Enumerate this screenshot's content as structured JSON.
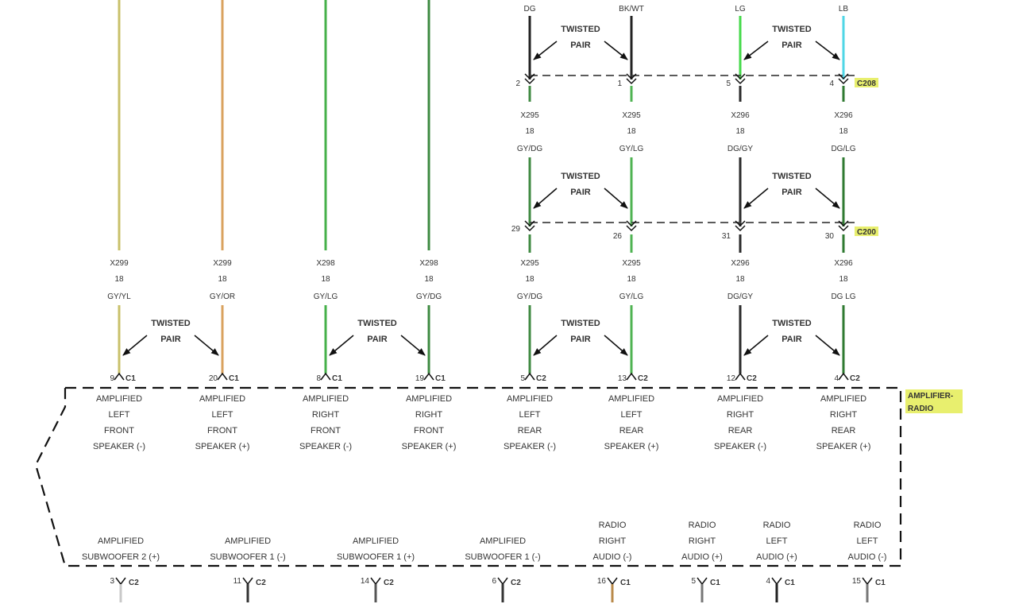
{
  "twisted_pair": [
    "TWISTED",
    "PAIR"
  ],
  "top_wires": [
    {
      "code": "DG",
      "color": "#222222"
    },
    {
      "code": "BK/WT",
      "color": "#222222"
    },
    {
      "code": "LG",
      "color": "#44d94a"
    },
    {
      "code": "LB",
      "color": "#4fd6e6"
    }
  ],
  "connector_c208": {
    "name": "C208",
    "pins": [
      "2",
      "1",
      "5",
      "4"
    ]
  },
  "connector_c200": {
    "name": "C200",
    "pins": [
      "29",
      "26",
      "31",
      "30"
    ]
  },
  "mid_wires": [
    {
      "circuit": "X295",
      "gauge": "18",
      "code": "GY/DG"
    },
    {
      "circuit": "X295",
      "gauge": "18",
      "code": "GY/LG"
    },
    {
      "circuit": "X296",
      "gauge": "18",
      "code": "DG/GY"
    },
    {
      "circuit": "X296",
      "gauge": "18",
      "code": "DG/LG"
    }
  ],
  "speaker_wires": [
    {
      "circuit": "X299",
      "gauge": "18",
      "code": "GY/YL",
      "color": "#c9c06a",
      "pin": "9",
      "conn": "C1",
      "function": [
        "AMPLIFIED",
        "LEFT",
        "FRONT",
        "SPEAKER (-)"
      ]
    },
    {
      "circuit": "X299",
      "gauge": "18",
      "code": "GY/OR",
      "color": "#d9a25e",
      "pin": "20",
      "conn": "C1",
      "function": [
        "AMPLIFIED",
        "LEFT",
        "FRONT",
        "SPEAKER (+)"
      ]
    },
    {
      "circuit": "X298",
      "gauge": "18",
      "code": "GY/LG",
      "color": "#46b04a",
      "pin": "8",
      "conn": "C1",
      "function": [
        "AMPLIFIED",
        "RIGHT",
        "FRONT",
        "SPEAKER (-)"
      ]
    },
    {
      "circuit": "X298",
      "gauge": "18",
      "code": "GY/DG",
      "color": "#3d8a40",
      "pin": "19",
      "conn": "C1",
      "function": [
        "AMPLIFIED",
        "RIGHT",
        "FRONT",
        "SPEAKER (+)"
      ]
    },
    {
      "circuit": "X295",
      "gauge": "18",
      "code": "GY/DG",
      "color": "#3f8a42",
      "pin": "5",
      "conn": "C2",
      "function": [
        "AMPLIFIED",
        "LEFT",
        "REAR",
        "SPEAKER (-)"
      ]
    },
    {
      "circuit": "X295",
      "gauge": "18",
      "code": "GY/LG",
      "color": "#4fb352",
      "pin": "13",
      "conn": "C2",
      "function": [
        "AMPLIFIED",
        "LEFT",
        "REAR",
        "SPEAKER (+)"
      ]
    },
    {
      "circuit": "X296",
      "gauge": "18",
      "code": "DG/GY",
      "color": "#2a2a2a",
      "pin": "12",
      "conn": "C2",
      "function": [
        "AMPLIFIED",
        "RIGHT",
        "REAR",
        "SPEAKER (-)"
      ]
    },
    {
      "circuit": "X296",
      "gauge": "18",
      "code": "DG LG",
      "color": "#2f7a31",
      "pin": "4",
      "conn": "C2",
      "function": [
        "AMPLIFIED",
        "RIGHT",
        "REAR",
        "SPEAKER (+)"
      ]
    }
  ],
  "module_label": [
    "AMPLIFIER-",
    "RADIO"
  ],
  "bottom_functions": [
    {
      "lines": [
        "AMPLIFIED",
        "SUBWOOFER 2 (+)"
      ],
      "pin": "3",
      "conn": "C2",
      "color": "#c8c8c8"
    },
    {
      "lines": [
        "AMPLIFIED",
        "SUBWOOFER 1 (-)"
      ],
      "pin": "11",
      "conn": "C2",
      "color": "#333333"
    },
    {
      "lines": [
        "AMPLIFIED",
        "SUBWOOFER 1 (+)"
      ],
      "pin": "14",
      "conn": "C2",
      "color": "#555555"
    },
    {
      "lines": [
        "AMPLIFIED",
        "SUBWOOFER 1 (-)"
      ],
      "pin": "6",
      "conn": "C2",
      "color": "#333333"
    },
    {
      "lines": [
        "RADIO",
        "RIGHT",
        "AUDIO (-)"
      ],
      "pin": "16",
      "conn": "C1",
      "color": "#b98a4a"
    },
    {
      "lines": [
        "RADIO",
        "RIGHT",
        "AUDIO (+)"
      ],
      "pin": "5",
      "conn": "C1",
      "color": "#777777"
    },
    {
      "lines": [
        "RADIO",
        "LEFT",
        "AUDIO (+)"
      ],
      "pin": "4",
      "conn": "C1",
      "color": "#222222"
    },
    {
      "lines": [
        "RADIO",
        "LEFT",
        "AUDIO (-)"
      ],
      "pin": "15",
      "conn": "C1",
      "color": "#777777"
    }
  ],
  "colors": {
    "connector_highlight": "#e8ef6e",
    "dash": "#444444"
  }
}
